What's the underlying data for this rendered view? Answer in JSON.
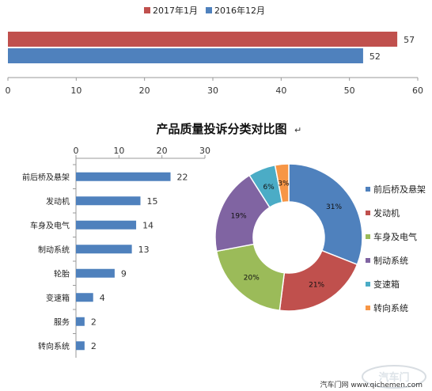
{
  "colors": {
    "red": "#c0504d",
    "blue": "#4f81bd",
    "green": "#9bbb59",
    "purple": "#8064a2",
    "teal": "#4bacc6",
    "orange": "#f79646",
    "bar_blue": "#4f81bd"
  },
  "watermark": {
    "text": "汽车门网 www.qichemen.com",
    "logo_text": "汽车门"
  },
  "chart_data": [
    {
      "type": "bar",
      "orientation": "horizontal",
      "categories": [
        ""
      ],
      "series": [
        {
          "name": "2017年1月",
          "values": [
            57
          ],
          "color": "#c0504d"
        },
        {
          "name": "2016年12月",
          "values": [
            52
          ],
          "color": "#4f81bd"
        }
      ],
      "xlim": [
        0,
        60
      ],
      "xticks": [
        0,
        10,
        20,
        30,
        40,
        50,
        60
      ],
      "legend": "top",
      "grid": false
    },
    {
      "type": "bar",
      "orientation": "horizontal",
      "title": "产品质量投诉分类对比图",
      "categories": [
        "前后桥及悬架",
        "发动机",
        "车身及电气",
        "制动系统",
        "轮胎",
        "变速箱",
        "服务",
        "转向系统"
      ],
      "values": [
        22,
        15,
        14,
        13,
        9,
        4,
        2,
        2
      ],
      "xlim": [
        0,
        30
      ],
      "xticks": [
        0,
        10,
        20,
        30
      ],
      "grid": false
    },
    {
      "type": "pie",
      "donut": true,
      "labels": [
        "前后桥及悬架",
        "发动机",
        "车身及电气",
        "制动系统",
        "变速箱",
        "转向系统"
      ],
      "values": [
        31,
        21,
        20,
        19,
        6,
        3
      ],
      "value_labels": [
        "31%",
        "21%",
        "20%",
        "19%",
        "6%",
        "3%"
      ],
      "colors": [
        "#4f81bd",
        "#c0504d",
        "#9bbb59",
        "#8064a2",
        "#4bacc6",
        "#f79646"
      ],
      "legend": "right"
    }
  ]
}
